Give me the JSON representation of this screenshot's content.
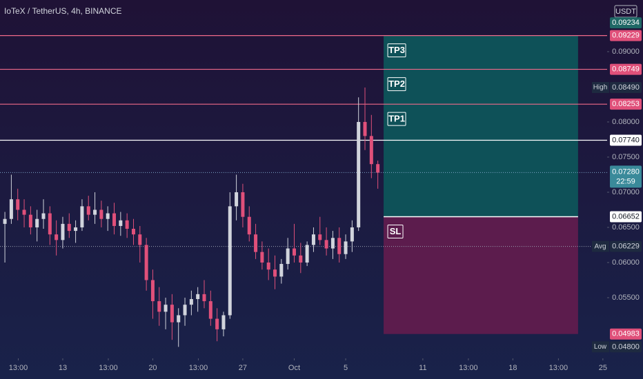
{
  "chart_data": {
    "type": "candlestick",
    "title": "IoTeX / TetherUS, 4h, BINANCE",
    "currency": "USDT",
    "x": [
      -4.5,
      -4.0,
      -3.5,
      -3.0,
      -2.5,
      -2.0,
      -1.5,
      -1.0,
      -0.5,
      0,
      0.5,
      1.0,
      1.5,
      2.0,
      2.5,
      3.0,
      3.5,
      4.0,
      4.5,
      5.0,
      5.5,
      6.0,
      6.5,
      7.0,
      7.5,
      8.0,
      8.5,
      9.0,
      9.5,
      10.0,
      10.5,
      11.0,
      11.5,
      12.0,
      12.5,
      13.0,
      13.5,
      14.0,
      14.5,
      15.0,
      15.5,
      16.0,
      16.5,
      17.0,
      17.5,
      18.0,
      18.5,
      19.0,
      19.5,
      20.0,
      20.5,
      21.0,
      21.5,
      22.0,
      22.5,
      23.0,
      23.5,
      24.0,
      24.5
    ],
    "open": [
      0.0655,
      0.0662,
      0.069,
      0.0675,
      0.0668,
      0.065,
      0.0662,
      0.067,
      0.064,
      0.0632,
      0.0655,
      0.0645,
      0.065,
      0.068,
      0.0668,
      0.0675,
      0.0662,
      0.067,
      0.0652,
      0.066,
      0.0648,
      0.064,
      0.0625,
      0.0575,
      0.0545,
      0.053,
      0.054,
      0.0515,
      0.0525,
      0.054,
      0.0548,
      0.0555,
      0.0545,
      0.052,
      0.0505,
      0.0525,
      0.068,
      0.07,
      0.0665,
      0.064,
      0.0615,
      0.06,
      0.059,
      0.058,
      0.0598,
      0.062,
      0.061,
      0.06,
      0.0625,
      0.064,
      0.0632,
      0.062,
      0.0635,
      0.0612,
      0.063,
      0.065,
      0.08,
      0.078,
      0.074
    ],
    "high": [
      0.0672,
      0.0725,
      0.0705,
      0.069,
      0.068,
      0.0675,
      0.069,
      0.068,
      0.066,
      0.0665,
      0.067,
      0.066,
      0.069,
      0.0695,
      0.07,
      0.0688,
      0.068,
      0.0685,
      0.0672,
      0.067,
      0.0662,
      0.0652,
      0.0635,
      0.059,
      0.0565,
      0.055,
      0.0555,
      0.0535,
      0.055,
      0.056,
      0.0565,
      0.0575,
      0.056,
      0.0535,
      0.053,
      0.07,
      0.0725,
      0.0712,
      0.068,
      0.0655,
      0.063,
      0.062,
      0.061,
      0.0605,
      0.0635,
      0.0655,
      0.0628,
      0.063,
      0.065,
      0.0665,
      0.065,
      0.0645,
      0.065,
      0.064,
      0.066,
      0.0835,
      0.0849,
      0.081,
      0.0745
    ],
    "low": [
      0.06,
      0.0655,
      0.066,
      0.065,
      0.064,
      0.063,
      0.0648,
      0.0625,
      0.061,
      0.062,
      0.0635,
      0.0628,
      0.0645,
      0.066,
      0.0655,
      0.065,
      0.0645,
      0.064,
      0.0638,
      0.0635,
      0.0625,
      0.06,
      0.056,
      0.052,
      0.051,
      0.0505,
      0.049,
      0.048,
      0.051,
      0.0525,
      0.053,
      0.0535,
      0.051,
      0.0488,
      0.0495,
      0.052,
      0.066,
      0.065,
      0.063,
      0.0605,
      0.059,
      0.0575,
      0.0562,
      0.057,
      0.059,
      0.06,
      0.0585,
      0.0595,
      0.0615,
      0.0625,
      0.061,
      0.0605,
      0.06,
      0.0605,
      0.0615,
      0.0645,
      0.076,
      0.072,
      0.0705
    ],
    "close": [
      0.0662,
      0.069,
      0.0675,
      0.0668,
      0.065,
      0.0662,
      0.067,
      0.064,
      0.0632,
      0.0655,
      0.0645,
      0.065,
      0.068,
      0.0668,
      0.0675,
      0.0662,
      0.067,
      0.0652,
      0.066,
      0.0648,
      0.064,
      0.0625,
      0.0575,
      0.0545,
      0.053,
      0.054,
      0.0515,
      0.0525,
      0.054,
      0.0548,
      0.0555,
      0.0545,
      0.052,
      0.0505,
      0.0525,
      0.068,
      0.07,
      0.0665,
      0.064,
      0.0615,
      0.06,
      0.059,
      0.058,
      0.0598,
      0.062,
      0.061,
      0.06,
      0.0625,
      0.064,
      0.0632,
      0.062,
      0.0635,
      0.0612,
      0.063,
      0.065,
      0.08,
      0.078,
      0.074,
      0.0728
    ],
    "up_color": "#d1d4dc",
    "down_color": "#e0507a",
    "xlim": [
      -4.88,
      42.33
    ],
    "ylim": [
      0.04637,
      0.09735
    ],
    "xticks": [
      {
        "value": -3.458,
        "label": "13:00"
      },
      {
        "value": 0,
        "label": "13"
      },
      {
        "value": 3.542,
        "label": "13:00"
      },
      {
        "value": 7,
        "label": "20"
      },
      {
        "value": 10.542,
        "label": "13:00"
      },
      {
        "value": 14,
        "label": "27"
      },
      {
        "value": 18,
        "label": "Oct"
      },
      {
        "value": 22,
        "label": "5"
      },
      {
        "value": 28,
        "label": "11"
      },
      {
        "value": 31.542,
        "label": "13:00"
      },
      {
        "value": 35,
        "label": "18"
      },
      {
        "value": 38.542,
        "label": "13:00"
      },
      {
        "value": 42,
        "label": "25"
      }
    ],
    "yticks": [
      {
        "value": 0.09,
        "label": "0.09000"
      },
      {
        "value": 0.08,
        "label": "0.08000"
      },
      {
        "value": 0.075,
        "label": "0.07500"
      },
      {
        "value": 0.07,
        "label": "0.07000"
      },
      {
        "value": 0.065,
        "label": "0.06500"
      },
      {
        "value": 0.06,
        "label": "0.06000"
      },
      {
        "value": 0.055,
        "label": "0.05500"
      }
    ],
    "levels": [
      {
        "value": 0.09229,
        "label": "0.09229",
        "tag": "TP3",
        "color": "#f06a8a"
      },
      {
        "value": 0.08749,
        "label": "0.08749",
        "tag": "TP2",
        "color": "#f06a8a"
      },
      {
        "value": 0.08253,
        "label": "0.08253",
        "tag": "TP1",
        "color": "#f06a8a"
      },
      {
        "value": 0.0774,
        "label": "0.07740",
        "color": "#ffffff"
      }
    ],
    "position": {
      "target": {
        "value": 0.09234,
        "label": "0.09234"
      },
      "entry": {
        "value": 0.06652,
        "label": "0.06652"
      },
      "stop": {
        "value": 0.04983,
        "label": "0.04983"
      },
      "stop_tag": "SL",
      "x_start": 24.95,
      "x_end": 40.07,
      "profit_color": "#0e5158",
      "loss_color": "#5c1c4d"
    },
    "current": {
      "value": 0.0728,
      "label": "0.07280",
      "countdown": "22:59"
    },
    "stats": [
      {
        "name": "High",
        "value": 0.0849,
        "label": "0.08490"
      },
      {
        "name": "Avg",
        "value": 0.06229,
        "label": "0.06229",
        "dotted": true
      },
      {
        "name": "Low",
        "value": 0.048,
        "label": "0.04800"
      }
    ]
  }
}
